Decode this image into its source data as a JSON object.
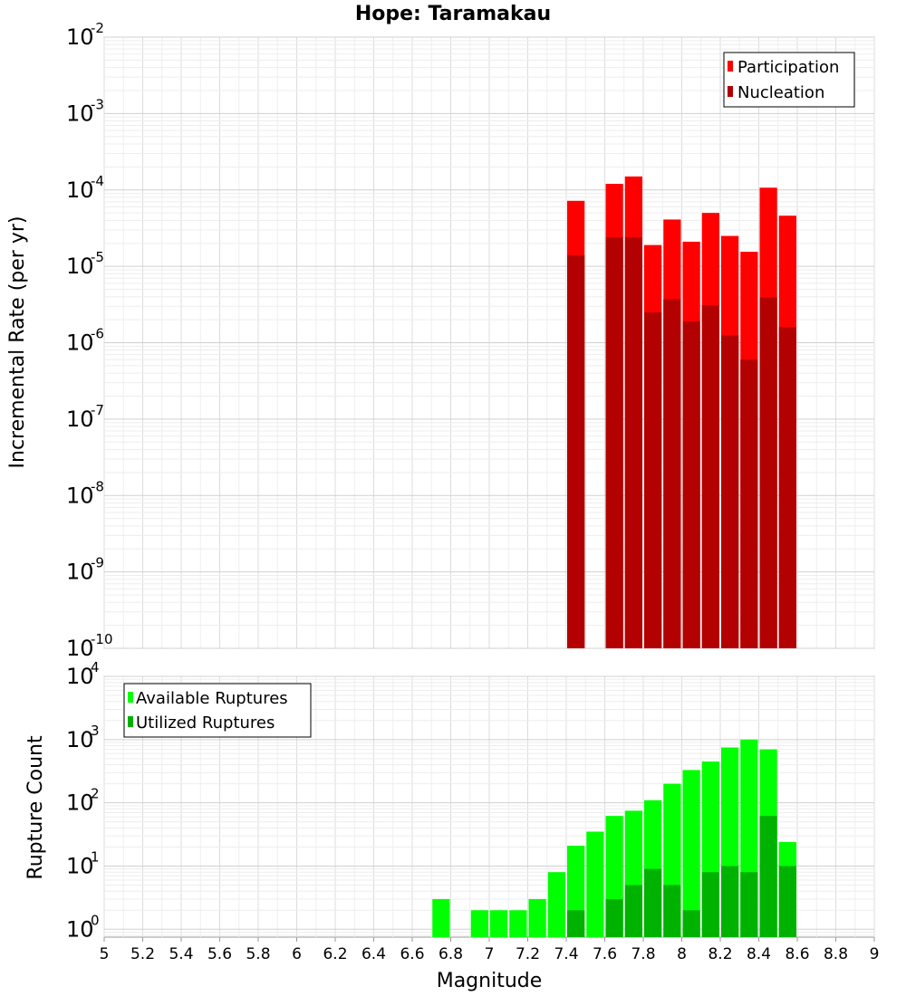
{
  "title": "Hope: Taramakau",
  "x_axis": {
    "label": "Magnitude",
    "ticks": [
      "5",
      "5.2",
      "5.4",
      "5.6",
      "5.8",
      "6",
      "6.2",
      "6.4",
      "6.6",
      "6.8",
      "7",
      "7.2",
      "7.4",
      "7.6",
      "7.8",
      "8",
      "8.2",
      "8.4",
      "8.6",
      "8.8",
      "9"
    ]
  },
  "chart_data": [
    {
      "type": "bar",
      "ylabel": "Incremental Rate (per yr)",
      "xlim": [
        5,
        9
      ],
      "ylim": [
        1e-10,
        0.01
      ],
      "yscale": "log",
      "grid": true,
      "legend": {
        "placement": "top-right"
      },
      "y_tick_exponents": [
        "-2",
        "-3",
        "-4",
        "-5",
        "-6",
        "-7",
        "-8",
        "-9",
        "-10"
      ],
      "x": [
        7.45,
        7.65,
        7.75,
        7.85,
        7.95,
        8.05,
        8.15,
        8.25,
        8.35,
        8.45,
        8.55
      ],
      "series": [
        {
          "name": "Participation",
          "color": "#ff0000",
          "values": [
            7.2e-05,
            0.00012,
            0.00015,
            1.9e-05,
            4.1e-05,
            2.1e-05,
            5e-05,
            2.5e-05,
            1.55e-05,
            0.000107,
            4.6e-05
          ]
        },
        {
          "name": "Nucleation",
          "color": "#b30000",
          "values": [
            1.4e-05,
            2.4e-05,
            2.4e-05,
            2.5e-06,
            3.7e-06,
            1.9e-06,
            3.1e-06,
            1.25e-06,
            6e-07,
            3.9e-06,
            1.6e-06
          ]
        }
      ]
    },
    {
      "type": "bar",
      "ylabel": "Rupture Count",
      "xlim": [
        5,
        9
      ],
      "ylim": [
        0.75,
        10000
      ],
      "yscale": "log",
      "grid": true,
      "legend": {
        "placement": "top-left"
      },
      "y_tick_exponents": [
        "4",
        "3",
        "2",
        "1",
        "0"
      ],
      "series": [
        {
          "name": "Available Ruptures",
          "color": "#00ff00",
          "x": [
            6.75,
            6.95,
            7.05,
            7.15,
            7.25,
            7.35,
            7.45,
            7.55,
            7.65,
            7.75,
            7.85,
            7.95,
            8.05,
            8.15,
            8.25,
            8.35,
            8.45,
            8.55
          ],
          "values": [
            3,
            2,
            2,
            2,
            3,
            8,
            21,
            35,
            62,
            75,
            110,
            200,
            330,
            450,
            750,
            1000,
            700,
            24
          ]
        },
        {
          "name": "Utilized Ruptures",
          "color": "#00b200",
          "x": [
            7.45,
            7.65,
            7.75,
            7.85,
            7.95,
            8.05,
            8.15,
            8.25,
            8.35,
            8.45,
            8.55
          ],
          "values": [
            2,
            3,
            5,
            9,
            5,
            2,
            8,
            10,
            8,
            62,
            10
          ]
        }
      ]
    }
  ]
}
